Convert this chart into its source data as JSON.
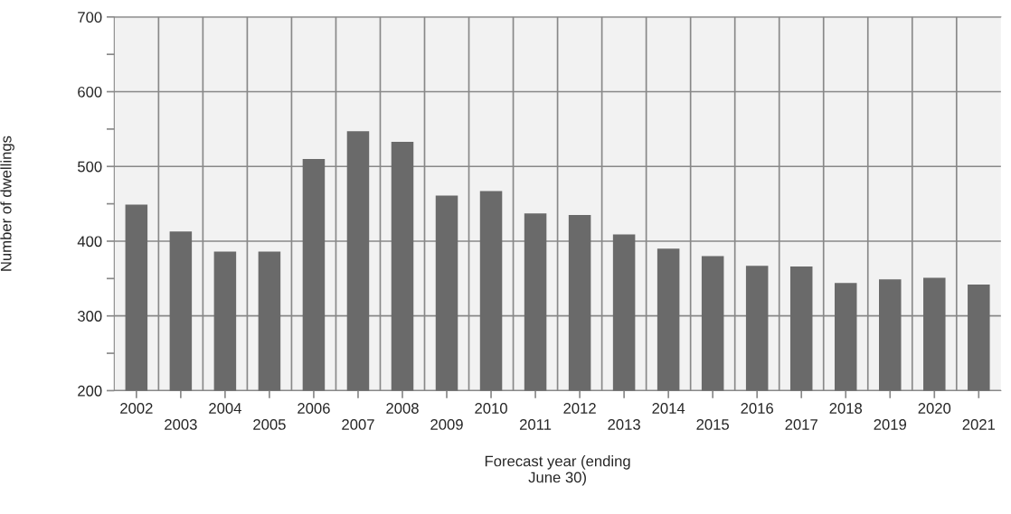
{
  "chart_data": {
    "type": "bar",
    "xlabel": "Forecast year (ending\nJune 30)",
    "ylabel": "Number of dwellings",
    "categories": [
      "2002",
      "2003",
      "2004",
      "2005",
      "2006",
      "2007",
      "2008",
      "2009",
      "2010",
      "2011",
      "2012",
      "2013",
      "2014",
      "2015",
      "2016",
      "2017",
      "2018",
      "2019",
      "2020",
      "2021"
    ],
    "values": [
      449,
      413,
      386,
      386,
      510,
      547,
      533,
      461,
      467,
      437,
      435,
      409,
      390,
      380,
      367,
      366,
      344,
      349,
      351,
      342
    ],
    "color": "#6a6a6a",
    "ylim": [
      200,
      700
    ],
    "yticks": [
      200,
      {
        "value": 250,
        "label": null
      },
      300,
      {
        "value": 350,
        "label": null
      },
      400,
      {
        "value": 450,
        "label": null
      },
      500,
      {
        "value": 550,
        "label": null
      },
      600,
      {
        "value": 650,
        "label": null
      },
      700
    ],
    "grid": true
  }
}
